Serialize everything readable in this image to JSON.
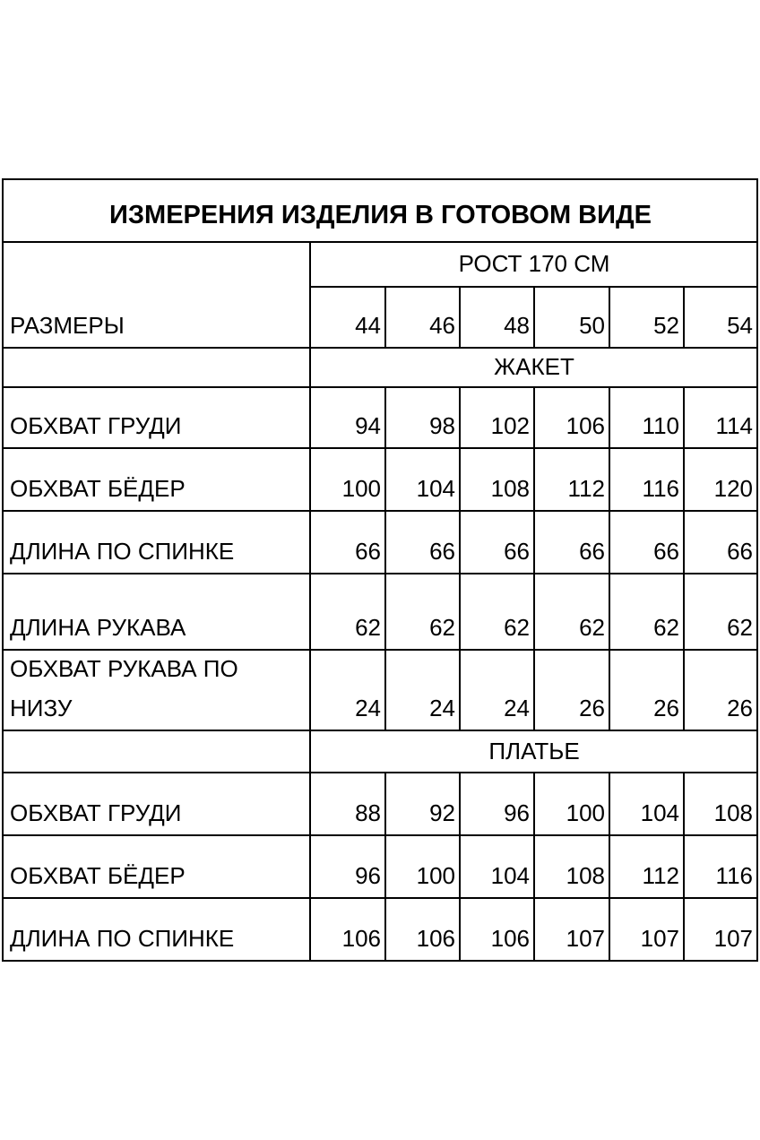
{
  "title": "ИЗМЕРЕНИЯ ИЗДЕЛИЯ В ГОТОВОМ ВИДЕ",
  "height_label": "РОСТ 170 СМ",
  "sizes_label": "РАЗМЕРЫ",
  "sizes": [
    "44",
    "46",
    "48",
    "50",
    "52",
    "54"
  ],
  "sections": [
    {
      "name": "ЖАКЕТ",
      "rows": [
        {
          "label": "ОБХВАТ ГРУДИ",
          "values": [
            "94",
            "98",
            "102",
            "106",
            "110",
            "114"
          ]
        },
        {
          "label": "ОБХВАТ БЁДЕР",
          "values": [
            "100",
            "104",
            "108",
            "112",
            "116",
            "120"
          ]
        },
        {
          "label": "ДЛИНА ПО СПИНКЕ",
          "values": [
            "66",
            "66",
            "66",
            "66",
            "66",
            "66"
          ]
        },
        {
          "label": "ДЛИНА РУКАВА",
          "values": [
            "62",
            "62",
            "62",
            "62",
            "62",
            "62"
          ]
        },
        {
          "label": "ОБХВАТ РУКАВА ПО\nНИЗУ",
          "values": [
            "24",
            "24",
            "24",
            "26",
            "26",
            "26"
          ]
        }
      ]
    },
    {
      "name": "ПЛАТЬЕ",
      "rows": [
        {
          "label": "ОБХВАТ ГРУДИ",
          "values": [
            "88",
            "92",
            "96",
            "100",
            "104",
            "108"
          ]
        },
        {
          "label": "ОБХВАТ БЁДЕР",
          "values": [
            "96",
            "100",
            "104",
            "108",
            "112",
            "116"
          ]
        },
        {
          "label": "ДЛИНА  ПО СПИНКЕ",
          "values": [
            "106",
            "106",
            "106",
            "107",
            "107",
            "107"
          ]
        }
      ]
    }
  ]
}
